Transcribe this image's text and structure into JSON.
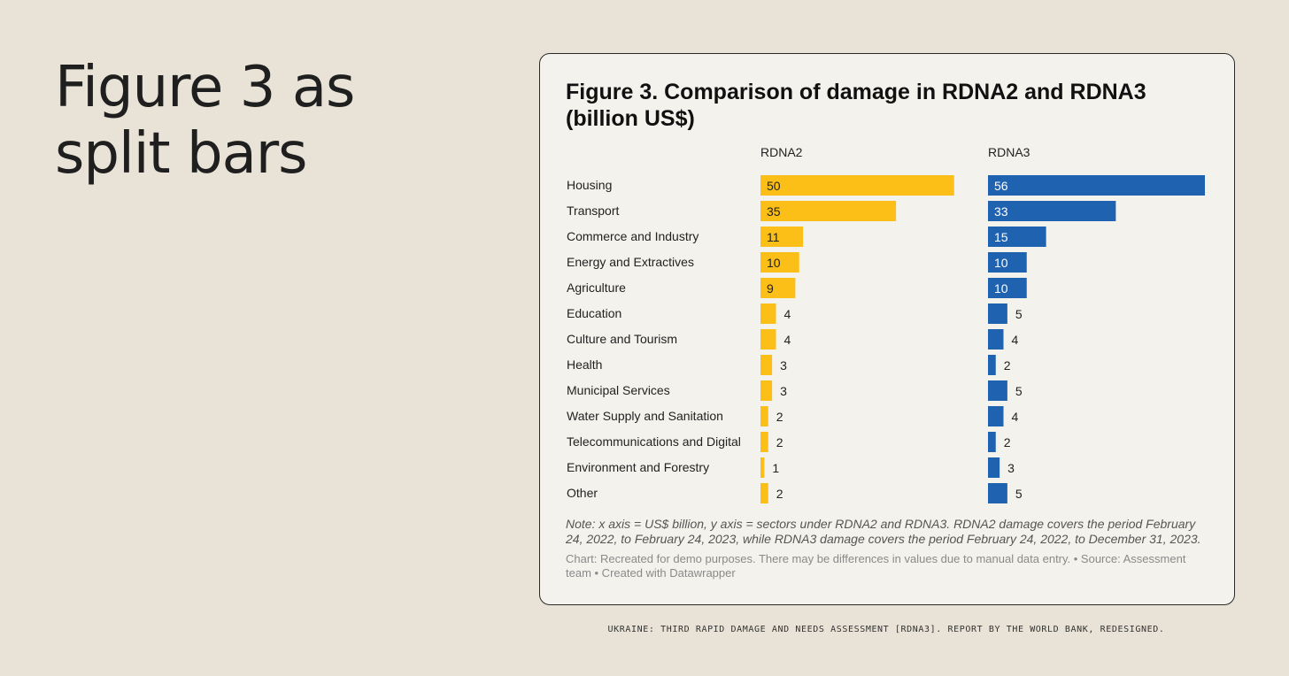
{
  "headline": "Figure 3 as split bars",
  "caption": "UKRAINE: THIRD RAPID DAMAGE AND NEEDS ASSESSMENT [RDNA3]. REPORT BY THE WORLD BANK, REDESIGNED.",
  "card": {
    "note": "Note: x axis = US$ billion, y axis = sectors under RDNA2 and RDNA3. RDNA2 damage covers the period February 24, 2022, to February 24, 2023, while RDNA3 damage covers the period February 24, 2022, to December 31, 2023.",
    "credit": "Chart: Recreated for demo purposes. There may be differences in values due to manual data entry. • Source: Assessment team • Created with Datawrapper"
  },
  "chart_data": {
    "type": "bar",
    "orientation": "horizontal",
    "layout": "split-bars",
    "title": "Figure 3. Comparison of damage in RDNA2 and RDNA3 (billion US$)",
    "categories": [
      "Housing",
      "Transport",
      "Commerce and Industry",
      "Energy and Extractives",
      "Agriculture",
      "Education",
      "Culture and Tourism",
      "Health",
      "Municipal Services",
      "Water Supply and Sanitation",
      "Telecommunications and Digital",
      "Environment and Forestry",
      "Other"
    ],
    "series": [
      {
        "name": "RDNA2",
        "color": "#fbbf17",
        "values": [
          50,
          35,
          11,
          10,
          9,
          4,
          4,
          3,
          3,
          2,
          2,
          1,
          2
        ]
      },
      {
        "name": "RDNA3",
        "color": "#1f62b0",
        "values": [
          56,
          33,
          15,
          10,
          10,
          5,
          4,
          2,
          5,
          4,
          2,
          3,
          5
        ]
      }
    ],
    "xlim": [
      0,
      56
    ],
    "grid": false,
    "legend": "none"
  }
}
